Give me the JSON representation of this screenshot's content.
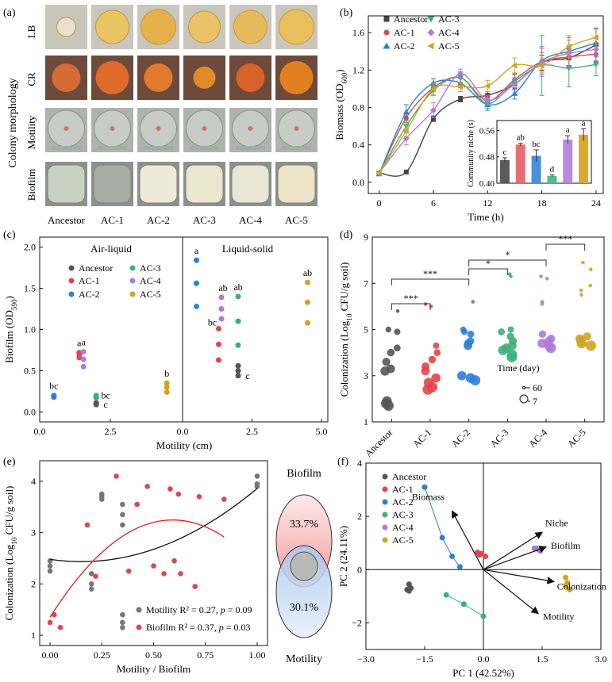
{
  "panels": {
    "a": {
      "letter": "(a)",
      "row_group_label": "Colony morphology",
      "rows": [
        "LB",
        "CR",
        "Motility",
        "Biofilm"
      ],
      "strains": [
        "Ancestor",
        "AC-1",
        "AC-2",
        "AC-3",
        "AC-4",
        "AC-5"
      ],
      "colors": {
        "LB_bg": "#c9c6bb",
        "CR_bg": "#6e4a3b",
        "plate_bg": "#aeb3ae",
        "well_bg": "#8d918c"
      }
    }
  },
  "chart_data": [
    {
      "panel": "(b)",
      "type": "line",
      "xlabel": "Time (h)",
      "ylabel_base": "Biomass (OD",
      "ylabel_sub": "600",
      "ylabel_end": ")",
      "xlim": [
        -1.2,
        24.8
      ],
      "ylim": [
        -0.12,
        1.78
      ],
      "xticks": [
        0,
        6,
        12,
        18,
        24
      ],
      "yticks": [
        0.0,
        0.4,
        0.8,
        1.2,
        1.6
      ],
      "ytick_labels": [
        "0.0",
        "0.4",
        "0.8",
        "1.2",
        "1.6"
      ],
      "x": [
        0,
        3,
        6,
        9,
        12,
        15,
        18,
        21,
        24
      ],
      "series": [
        {
          "name": "Ancestor",
          "color": "#444444",
          "marker": "square",
          "values": [
            0.1,
            0.11,
            0.68,
            0.89,
            0.93,
            1.05,
            1.28,
            1.33,
            1.47
          ],
          "errors": [
            0.01,
            0.01,
            0.03,
            0.03,
            0.04,
            0.05,
            0.08,
            0.1,
            0.18
          ]
        },
        {
          "name": "AC-1",
          "color": "#e0464a",
          "marker": "circle",
          "values": [
            0.1,
            0.69,
            1.01,
            1.12,
            0.87,
            1.1,
            1.29,
            1.34,
            1.37
          ],
          "errors": [
            0.01,
            0.05,
            0.04,
            0.06,
            0.05,
            0.06,
            0.1,
            0.12,
            0.1
          ]
        },
        {
          "name": "AC-2",
          "color": "#2f7fd6",
          "marker": "triangle",
          "values": [
            0.09,
            0.75,
            1.06,
            1.06,
            0.83,
            0.95,
            1.3,
            1.4,
            1.49
          ],
          "errors": [
            0.01,
            0.08,
            0.05,
            0.05,
            0.06,
            0.06,
            0.15,
            0.15,
            0.15
          ]
        },
        {
          "name": "AC-3",
          "color": "#3db07a",
          "marker": "tri-down",
          "values": [
            0.1,
            0.6,
            0.98,
            1.12,
            0.84,
            1.08,
            1.25,
            1.22,
            1.26
          ],
          "errors": [
            0.01,
            0.06,
            0.05,
            0.06,
            0.05,
            0.07,
            0.32,
            0.2,
            0.12
          ]
        },
        {
          "name": "AC-4",
          "color": "#b07ad8",
          "marker": "diamond",
          "values": [
            0.1,
            0.47,
            0.77,
            1.16,
            0.88,
            1.05,
            1.28,
            1.38,
            1.42
          ],
          "errors": [
            0.01,
            0.07,
            0.08,
            0.05,
            0.05,
            0.06,
            0.15,
            0.14,
            0.12
          ]
        },
        {
          "name": "AC-5",
          "color": "#d4a21e",
          "marker": "tri-left",
          "values": [
            0.1,
            0.55,
            1.0,
            1.02,
            1.03,
            1.25,
            1.25,
            1.45,
            1.55
          ],
          "errors": [
            0.01,
            0.06,
            0.06,
            0.05,
            0.06,
            0.08,
            0.08,
            0.12,
            0.1
          ]
        }
      ],
      "inset": {
        "type": "bar",
        "ylabel": "Community niche (s)",
        "ylim": [
          0.4,
          0.59
        ],
        "yticks": [
          0.4,
          0.48,
          0.56
        ],
        "ytick_labels": [
          "0.40",
          "0.48",
          "0.56"
        ],
        "values": [
          0.47,
          0.517,
          0.483,
          0.422,
          0.532,
          0.547
        ],
        "errors": [
          0.007,
          0.004,
          0.018,
          0.003,
          0.012,
          0.018
        ],
        "letters": [
          "c",
          "ab",
          "bc",
          "d",
          "a",
          "a"
        ],
        "colors": [
          "#5b5b5b",
          "#ec6b70",
          "#4a8fdc",
          "#4fbf8a",
          "#b88ae0",
          "#d8aa34"
        ]
      }
    },
    {
      "panel": "(c)",
      "type": "scatter",
      "xlabel": "Motility (cm)",
      "ylabel_base": "Biofilm (OD",
      "ylabel_sub": "590",
      "ylabel_end": ")",
      "sections": [
        "Air-liquid",
        "Liquid-solid"
      ],
      "ylim": [
        -0.12,
        2.12
      ],
      "yticks": [
        0.0,
        0.5,
        1.0,
        1.5,
        2.0
      ],
      "ytick_labels": [
        "0.0",
        "0.5",
        "1.0",
        "1.5",
        "2.0"
      ],
      "xtick_labels": [
        "0.0",
        "2.5",
        "5.0"
      ],
      "groups": [
        {
          "section": "Air-liquid",
          "name": "Ancestor",
          "color": "#555555",
          "x": 2.0,
          "y": [
            0.09,
            0.1,
            0.11
          ],
          "letter": "c"
        },
        {
          "section": "Air-liquid",
          "name": "AC-1",
          "color": "#e0464a",
          "x": 1.4,
          "y": [
            0.66,
            0.7,
            0.72
          ],
          "letter": "a"
        },
        {
          "section": "Air-liquid",
          "name": "AC-2",
          "color": "#2f7fd6",
          "x": 0.5,
          "y": [
            0.18,
            0.19,
            0.2
          ],
          "letter": "bc"
        },
        {
          "section": "Air-liquid",
          "name": "AC-3",
          "color": "#3db07a",
          "x": 2.0,
          "y": [
            0.17,
            0.18,
            0.2
          ],
          "letter": "bc"
        },
        {
          "section": "Air-liquid",
          "name": "AC-4",
          "color": "#b07ad8",
          "x": 1.55,
          "y": [
            0.55,
            0.64,
            0.73
          ],
          "letter": "a"
        },
        {
          "section": "Air-liquid",
          "name": "AC-5",
          "color": "#d4a21e",
          "x": 4.5,
          "y": [
            0.24,
            0.3,
            0.35
          ],
          "letter": "b"
        },
        {
          "section": "Liquid-solid",
          "name": "Ancestor",
          "color": "#555555",
          "x": 2.0,
          "y": [
            0.44,
            0.5,
            0.56
          ],
          "letter": "c"
        },
        {
          "section": "Liquid-solid",
          "name": "AC-1",
          "color": "#e0464a",
          "x": 1.3,
          "y": [
            0.63,
            0.82,
            1.01
          ],
          "letter": "bc"
        },
        {
          "section": "Liquid-solid",
          "name": "AC-2",
          "color": "#2f7fd6",
          "x": 0.5,
          "y": [
            1.28,
            1.56,
            1.84
          ],
          "letter": "a"
        },
        {
          "section": "Liquid-solid",
          "name": "AC-3",
          "color": "#3db07a",
          "x": 2.0,
          "y": [
            0.81,
            1.1,
            1.4
          ],
          "letter": "ab"
        },
        {
          "section": "Liquid-solid",
          "name": "AC-4",
          "color": "#b07ad8",
          "x": 1.4,
          "y": [
            1.13,
            1.25,
            1.39
          ],
          "letter": "ab"
        },
        {
          "section": "Liquid-solid",
          "name": "AC-5",
          "color": "#d4a21e",
          "x": 4.5,
          "y": [
            1.08,
            1.33,
            1.57
          ],
          "letter": "ab"
        }
      ]
    },
    {
      "panel": "(d)",
      "type": "scatter",
      "ylabel_base": "Colonization (Log",
      "ylabel_sub": "10",
      "ylabel_end": " CFU/g soil)",
      "ylim": [
        1,
        9
      ],
      "yticks": [
        1,
        3,
        5,
        7,
        9
      ],
      "categories": [
        "Ancestor",
        "AC-1",
        "AC-2",
        "AC-3",
        "AC-4",
        "AC-5"
      ],
      "colors": [
        "#555555",
        "#e0464a",
        "#2f7fd6",
        "#3db07a",
        "#b07ad8",
        "#d4a21e"
      ],
      "points": [
        [
          1.7,
          1.8,
          1.9,
          3.2,
          3.3,
          3.6,
          4.0,
          4.2,
          4.9,
          5.0,
          5.8
        ],
        [
          2.4,
          2.5,
          2.7,
          2.9,
          3.2,
          3.4,
          3.7,
          4.0,
          4.3,
          6.0,
          6.1
        ],
        [
          2.8,
          2.9,
          3.0,
          4.3,
          4.4,
          4.5,
          4.8,
          4.9,
          5.0,
          6.2
        ],
        [
          3.8,
          3.9,
          4.1,
          4.2,
          4.3,
          4.5,
          4.7,
          4.9,
          5.0,
          7.3,
          7.4
        ],
        [
          4.2,
          4.3,
          4.4,
          4.5,
          4.6,
          4.8,
          6.1,
          6.2,
          7.2,
          7.3
        ],
        [
          4.3,
          4.4,
          4.5,
          4.6,
          4.7,
          6.5,
          6.7,
          6.9,
          7.6,
          7.9
        ]
      ],
      "brackets": [
        {
          "from": 0,
          "to": 1,
          "label": "***"
        },
        {
          "from": 0,
          "to": 2,
          "label": "***"
        },
        {
          "from": 2,
          "to": 3,
          "label": "*"
        },
        {
          "from": 2,
          "to": 4,
          "label": "*"
        },
        {
          "from": 4,
          "to": 5,
          "label": "***"
        }
      ],
      "size_legend": {
        "title": "Time (day)",
        "labels": [
          "60",
          "7"
        ]
      }
    },
    {
      "panel": "(e)",
      "type": "scatter",
      "xlabel": "Motility / Biofilm",
      "ylabel_base": "Colonization (Log",
      "ylabel_sub": "10",
      "ylabel_end": " CFU/g soil)",
      "xlim": [
        -0.05,
        1.05
      ],
      "ylim": [
        0.8,
        4.4
      ],
      "xticks": [
        0.0,
        0.25,
        0.5,
        0.75,
        1.0
      ],
      "xtick_labels": [
        "0.00",
        "0.25",
        "0.50",
        "0.75",
        "1.00"
      ],
      "yticks": [
        1,
        2,
        3,
        4
      ],
      "series": [
        {
          "name": "Motility",
          "color": "#777777",
          "x": [
            0.0,
            0.0,
            0.0,
            0.0,
            0.2,
            0.2,
            0.2,
            0.25,
            0.25,
            0.25,
            0.35,
            0.35,
            0.35,
            0.35,
            0.35,
            0.35,
            1.0,
            1.0,
            1.0
          ],
          "y": [
            2.45,
            2.35,
            2.25,
            2.45,
            2.2,
            2.0,
            1.9,
            3.75,
            3.7,
            3.65,
            3.55,
            3.35,
            3.15,
            1.4,
            1.25,
            1.15,
            4.1,
            3.95,
            3.9
          ],
          "fit": [
            2.48,
            -0.6,
            1.98
          ]
        },
        {
          "name": "Biofilm",
          "color": "#e0464a",
          "x": [
            0.0,
            0.02,
            0.05,
            0.18,
            0.22,
            0.32,
            0.38,
            0.42,
            0.47,
            0.5,
            0.55,
            0.58,
            0.6,
            0.62,
            0.63,
            0.7,
            0.72,
            0.84
          ],
          "y": [
            1.25,
            1.4,
            1.15,
            3.15,
            2.15,
            4.1,
            2.25,
            3.55,
            3.9,
            2.35,
            2.2,
            3.85,
            2.45,
            3.75,
            2.2,
            1.95,
            3.7,
            3.65
          ],
          "fit": [
            1.35,
            6.4,
            -5.4
          ]
        }
      ],
      "stats": [
        {
          "name": "Motility",
          "r2": "Motility R² = 0.27, ",
          "p_label": "p",
          "p_value": " = 0.09"
        },
        {
          "name": "Biofilm",
          "r2": "Biofilm R² = 0.37, ",
          "p_label": "p",
          "p_value": " = 0.03"
        }
      ],
      "venn": {
        "top_label": "Biofilm",
        "top_value": "33.7%",
        "bottom_label": "Motility",
        "bottom_value": "30.1%"
      }
    },
    {
      "panel": "(f)",
      "type": "scatter",
      "xlabel": "PC 1 (42.52%)",
      "ylabel": "PC 2 (24.11%)",
      "xlim": [
        -3.0,
        3.0
      ],
      "ylim": [
        -3.0,
        4.0
      ],
      "xticks": [
        -3.0,
        -1.5,
        0.0,
        1.5,
        3.0
      ],
      "xtick_labels": [
        "−3.0",
        "−1.5",
        "0.0",
        "1.5",
        "3.0"
      ],
      "yticks": [
        -2,
        0,
        2,
        4
      ],
      "ytick_labels": [
        "−2",
        "0",
        "2",
        "4"
      ],
      "groups": [
        {
          "name": "Ancestor",
          "color": "#555555",
          "points": [
            [
              -1.9,
              -0.55
            ],
            [
              -1.95,
              -0.75
            ],
            [
              -1.85,
              -0.7
            ],
            [
              -1.9,
              -0.8
            ]
          ]
        },
        {
          "name": "AC-1",
          "color": "#e0464a",
          "points": [
            [
              -0.15,
              0.65
            ],
            [
              -0.05,
              0.6
            ],
            [
              0.05,
              0.5
            ],
            [
              -0.1,
              0.55
            ]
          ]
        },
        {
          "name": "AC-2",
          "color": "#2f7fd6",
          "points": [
            [
              -1.5,
              3.1
            ],
            [
              -1.05,
              1.2
            ],
            [
              -0.8,
              0.5
            ],
            [
              -0.6,
              0.1
            ]
          ]
        },
        {
          "name": "AC-3",
          "color": "#3db07a",
          "points": [
            [
              -0.95,
              -0.95
            ],
            [
              -0.5,
              -1.3
            ],
            [
              0.0,
              -1.75
            ],
            [
              -0.5,
              -1.3
            ]
          ]
        },
        {
          "name": "AC-4",
          "color": "#b07ad8",
          "points": [
            [
              1.3,
              0.8
            ],
            [
              1.4,
              0.75
            ],
            [
              1.45,
              0.7
            ],
            [
              1.35,
              0.8
            ]
          ]
        },
        {
          "name": "AC-5",
          "color": "#d4a21e",
          "points": [
            [
              2.1,
              -0.3
            ],
            [
              2.15,
              -0.5
            ],
            [
              2.2,
              -0.75
            ],
            [
              2.1,
              -0.6
            ]
          ]
        }
      ],
      "loadings": [
        {
          "label": "Biomass",
          "x": -0.8,
          "y": 2.2
        },
        {
          "label": "Niche",
          "x": 1.5,
          "y": 1.4
        },
        {
          "label": "Biofilm",
          "x": 1.6,
          "y": 0.85
        },
        {
          "label": "Colonization",
          "x": 1.8,
          "y": -0.45
        },
        {
          "label": "Motility",
          "x": 1.4,
          "y": -1.65
        }
      ]
    }
  ]
}
